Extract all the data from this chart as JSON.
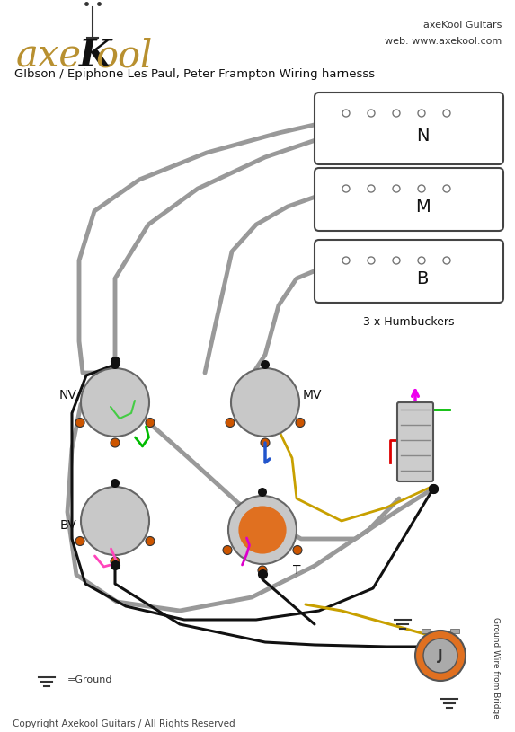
{
  "title": "GIbson / Epiphone Les Paul, Peter Frampton Wiring harnesss",
  "brand_line1": "axeKool Guitars",
  "brand_line2": "web: www.axekool.com",
  "copyright": "Copyright Axekool Guitars / All Rights Reserved",
  "ground_label": "=Ground",
  "ground_bridge_label": "Ground Wire from Bridge",
  "humbuckers_label": "3 x Humbuckers",
  "bg_color": "#ffffff",
  "wire_gray": "#999999",
  "wire_black": "#111111",
  "wire_green": "#00bb00",
  "wire_red": "#dd0000",
  "wire_blue": "#2255cc",
  "wire_gold": "#c8a000",
  "wire_pink": "#ff44bb",
  "wire_magenta": "#dd00cc",
  "pot_fill": "#c8c8c8",
  "pot_edge": "#666666",
  "lug_fill": "#cc5500",
  "lug_edge": "#333333",
  "switch_fill": "#cccccc",
  "switch_edge": "#555555",
  "switch_pink": "#ee00ee",
  "switch_red": "#dd0000",
  "switch_green": "#00bb00",
  "jack_orange": "#e07020",
  "jack_gray": "#aaaaaa",
  "pickup_fill": "#ffffff",
  "pickup_edge": "#444444",
  "dot_color": "#666666"
}
